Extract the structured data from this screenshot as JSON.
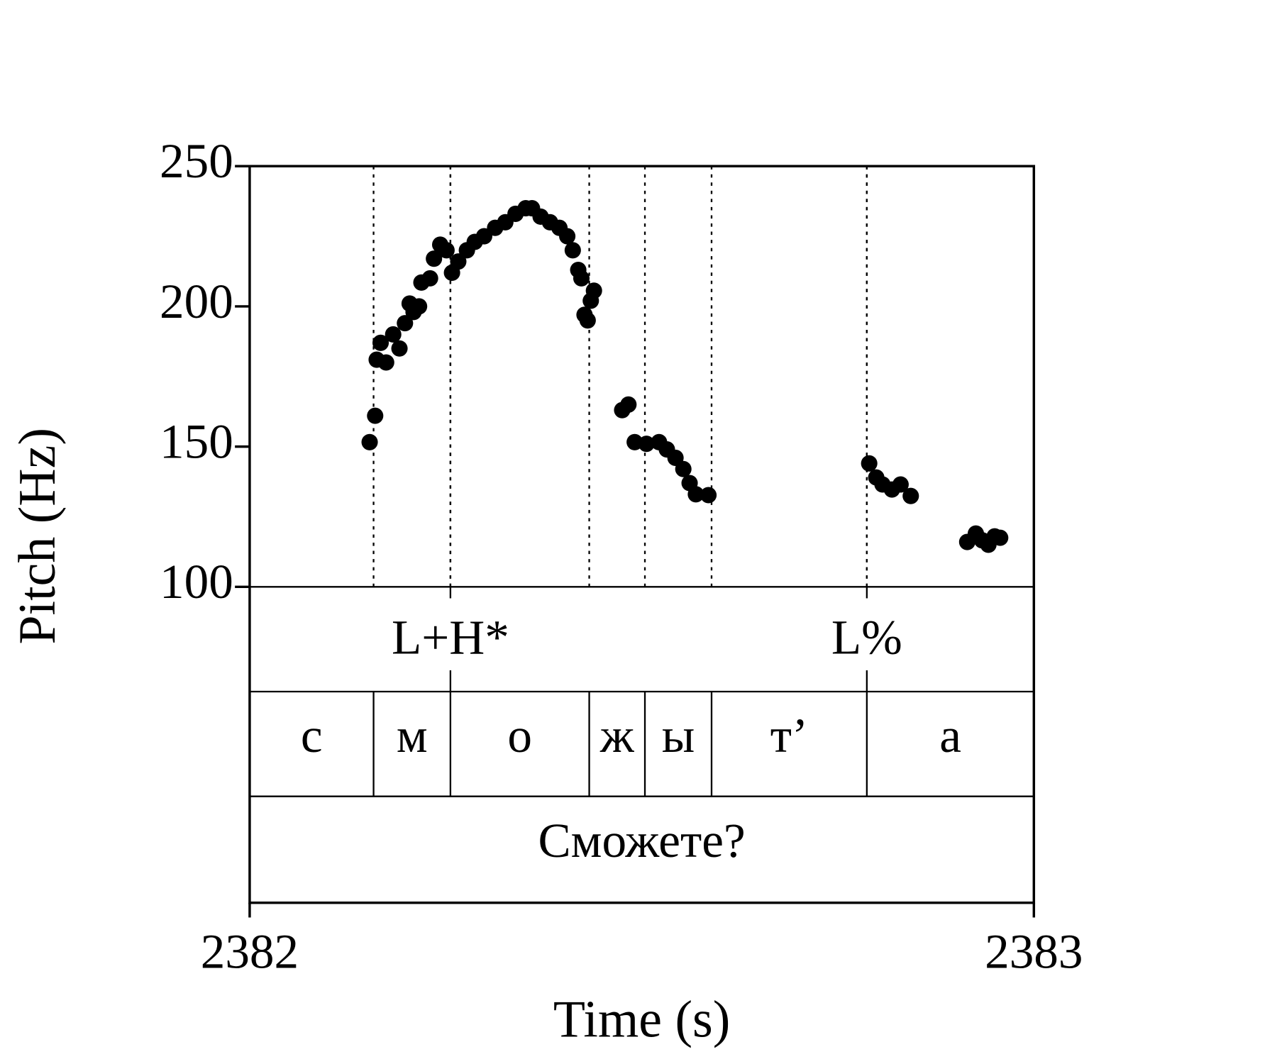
{
  "chart_data": {
    "type": "scatter",
    "x_label": "Time (s)",
    "y_label": "Pitch (Hz)",
    "xlim": [
      2382,
      2383
    ],
    "xticks": [
      2382,
      2383
    ],
    "ylim": [
      100,
      250
    ],
    "yticks": [
      100,
      150,
      200,
      250
    ],
    "color": "#000000",
    "x": [
      2382.153,
      2382.16,
      2382.162,
      2382.167,
      2382.174,
      2382.183,
      2382.191,
      2382.198,
      2382.204,
      2382.209,
      2382.216,
      2382.219,
      2382.23,
      2382.235,
      2382.243,
      2382.251,
      2382.258,
      2382.266,
      2382.277,
      2382.287,
      2382.299,
      2382.313,
      2382.326,
      2382.339,
      2382.352,
      2382.36,
      2382.371,
      2382.383,
      2382.395,
      2382.405,
      2382.412,
      2382.419,
      2382.423,
      2382.427,
      2382.431,
      2382.435,
      2382.439,
      2382.475,
      2382.483,
      2382.491,
      2382.506,
      2382.522,
      2382.532,
      2382.543,
      2382.553,
      2382.561,
      2382.569,
      2382.585,
      2382.79,
      2382.799,
      2382.807,
      2382.819,
      2382.83,
      2382.843,
      2382.915,
      2382.926,
      2382.934,
      2382.942,
      2382.95,
      2382.957
    ],
    "values": [
      151.6,
      161,
      181,
      187,
      180,
      190,
      185,
      194,
      201,
      198,
      200,
      208.5,
      210,
      217,
      222,
      220,
      212,
      216,
      220,
      223,
      225,
      228,
      230,
      233,
      235,
      235,
      232,
      230,
      228,
      225,
      220,
      213,
      210,
      197,
      195,
      202,
      205.6,
      163,
      165,
      151.6,
      151,
      151.6,
      149,
      146,
      142,
      137,
      133,
      132.7,
      144,
      139,
      136.5,
      134.7,
      136.5,
      132.4,
      116,
      119,
      116.6,
      115,
      118,
      117.5
    ],
    "tiers": [
      {
        "type": "point",
        "labels": [
          "L+H*",
          "L%"
        ],
        "times": [
          2382.256,
          2382.787
        ]
      },
      {
        "type": "interval",
        "labels": [
          "с",
          "м",
          "о",
          "ж",
          "ы",
          "т’",
          "а"
        ],
        "boundaries": [
          2382.158,
          2382.256,
          2382.433,
          2382.504,
          2382.589,
          2382.787
        ]
      },
      {
        "type": "interval",
        "labels": [
          "Сможете?"
        ]
      }
    ]
  }
}
